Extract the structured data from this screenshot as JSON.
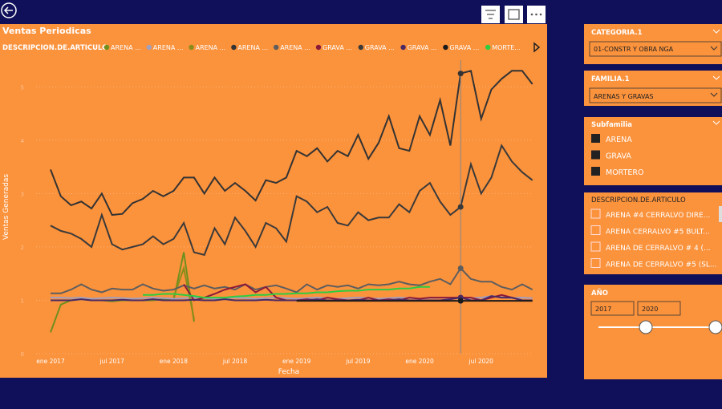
{
  "chart_data": {
    "type": "line",
    "title": "Ventas Periodicas",
    "legend_title": "DESCRIPCION.DE.ARTICULO",
    "x_label": "Fecha",
    "y_label": "Ventas Generadas",
    "categories": [
      "ene 2017",
      null,
      null,
      null,
      null,
      null,
      "jul 2017",
      null,
      null,
      null,
      null,
      null,
      "ene 2018",
      null,
      null,
      null,
      null,
      null,
      "jul 2018",
      null,
      null,
      null,
      null,
      null,
      "ene 2019",
      null,
      null,
      null,
      null,
      null,
      "jul 2019",
      null,
      null,
      null,
      null,
      null,
      "ene 2020",
      null,
      null,
      null,
      null,
      null,
      "jul 2020",
      null,
      null,
      null,
      null,
      null
    ],
    "ylim": [
      0,
      5.5
    ],
    "yticks": [
      0,
      1,
      2,
      3,
      4,
      5
    ],
    "grid": true,
    "series": [
      {
        "name": "ARENA ...",
        "color": "#6f8f1f",
        "values": [
          0.4,
          0.92,
          1.0,
          1.02,
          1.0,
          1.0,
          0.98,
          1.0,
          1.0,
          1.0,
          1.0,
          1.02,
          1.0,
          1.9,
          0.6,
          null,
          null,
          null,
          null,
          null,
          null,
          null,
          null,
          null,
          null,
          null,
          null,
          null,
          null,
          null,
          null,
          null,
          null,
          null,
          null,
          null,
          null,
          null,
          null,
          null,
          null,
          null,
          null,
          null,
          null,
          null,
          null,
          null
        ]
      },
      {
        "name": "ARENA ...",
        "color": "#a29fbf",
        "values": [
          1.05,
          1.05,
          1.04,
          1.05,
          1.03,
          1.04,
          1.05,
          1.04,
          1.03,
          1.04,
          1.05,
          1.04,
          1.03,
          1.04,
          1.05,
          1.04,
          1.03,
          1.04,
          1.05,
          1.04,
          1.03,
          1.04,
          1.05,
          1.04,
          1.03,
          1.04,
          1.05,
          1.04,
          1.03,
          1.04,
          1.05,
          1.04,
          1.03,
          1.04,
          1.05,
          1.04,
          1.03,
          1.04,
          1.05,
          1.04,
          1.03,
          1.04,
          1.05,
          1.08,
          1.06,
          1.04,
          1.05,
          1.04
        ]
      },
      {
        "name": "ARENA ...",
        "color": "#8c8c1a",
        "values": [
          null,
          null,
          null,
          null,
          null,
          null,
          null,
          null,
          null,
          null,
          null,
          null,
          1.05,
          1.6,
          0.65,
          null,
          null,
          null,
          null,
          null,
          null,
          null,
          null,
          null,
          null,
          null,
          null,
          null,
          null,
          null,
          null,
          null,
          null,
          null,
          null,
          null,
          null,
          null,
          null,
          null,
          null,
          null,
          null,
          null,
          null,
          null,
          null,
          null
        ]
      },
      {
        "name": "ARENA ...",
        "color": "#333333",
        "values": [
          3.45,
          2.95,
          2.78,
          2.85,
          2.72,
          3.0,
          2.6,
          2.62,
          2.82,
          2.9,
          3.05,
          2.95,
          3.05,
          3.3,
          3.3,
          3.0,
          3.3,
          3.05,
          3.2,
          3.05,
          2.87,
          3.25,
          3.2,
          3.3,
          3.8,
          3.7,
          3.85,
          3.6,
          3.8,
          3.7,
          4.1,
          3.65,
          3.95,
          4.45,
          3.85,
          3.8,
          4.45,
          4.1,
          4.75,
          3.9,
          5.25,
          5.3,
          4.4,
          4.95,
          5.15,
          5.3,
          5.3,
          5.05
        ]
      },
      {
        "name": "ARENA ...",
        "color": "#5e5e5e",
        "values": [
          1.13,
          1.13,
          1.2,
          1.3,
          1.2,
          1.15,
          1.22,
          1.2,
          1.2,
          1.3,
          1.22,
          1.18,
          1.2,
          1.28,
          1.22,
          1.28,
          1.22,
          1.25,
          1.2,
          1.3,
          1.2,
          1.25,
          1.28,
          1.22,
          1.15,
          1.3,
          1.2,
          1.28,
          1.25,
          1.28,
          1.22,
          1.3,
          1.28,
          1.3,
          1.35,
          1.3,
          1.28,
          1.35,
          1.4,
          1.3,
          1.6,
          1.4,
          1.35,
          1.35,
          1.25,
          1.2,
          1.3,
          1.2
        ]
      },
      {
        "name": "GRAVA ...",
        "color": "#8b1a3a",
        "values": [
          null,
          null,
          null,
          null,
          null,
          null,
          null,
          null,
          null,
          null,
          null,
          null,
          null,
          1.3,
          1.0,
          1.05,
          1.12,
          1.2,
          1.25,
          1.3,
          1.15,
          1.25,
          1.05,
          1.0,
          1.0,
          1.02,
          1.0,
          1.05,
          1.02,
          1.0,
          1.0,
          1.05,
          1.0,
          1.02,
          1.0,
          1.05,
          1.03,
          1.05,
          1.05,
          1.05,
          1.05,
          1.05,
          1.0,
          1.05,
          1.1,
          1.05,
          1.0,
          null
        ]
      },
      {
        "name": "GRAVA ...",
        "color": "#3a3a3a",
        "values": [
          2.4,
          2.3,
          2.25,
          2.15,
          2.0,
          2.6,
          2.05,
          1.95,
          2.0,
          2.05,
          2.2,
          2.05,
          2.15,
          2.45,
          1.9,
          1.85,
          2.35,
          2.05,
          2.55,
          2.3,
          2.0,
          2.45,
          2.35,
          2.1,
          2.95,
          2.85,
          2.65,
          2.75,
          2.45,
          2.4,
          2.65,
          2.5,
          2.55,
          2.55,
          2.8,
          2.65,
          3.05,
          3.2,
          2.85,
          2.6,
          2.75,
          3.55,
          3.0,
          3.3,
          3.9,
          3.6,
          3.4,
          3.25
        ]
      },
      {
        "name": "GRAVA ...",
        "color": "#4b2a63",
        "values": [
          1.0,
          1.0,
          1.0,
          1.02,
          1.0,
          1.0,
          1.0,
          1.01,
          1.0,
          1.0,
          1.02,
          1.0,
          1.0,
          1.0,
          1.01,
          1.0,
          1.0,
          1.02,
          1.0,
          1.0,
          1.0,
          1.01,
          1.0,
          1.0,
          1.0,
          1.0,
          1.02,
          1.0,
          1.0,
          1.0,
          1.01,
          1.0,
          1.0,
          1.0,
          1.02,
          1.0,
          1.0,
          1.0,
          1.0,
          1.02,
          1.05,
          1.0,
          1.0,
          1.08,
          1.05,
          1.05,
          1.0,
          1.0
        ]
      },
      {
        "name": "GRAVA ...",
        "color": "#1a1a1a",
        "values": [
          null,
          null,
          null,
          null,
          null,
          null,
          null,
          null,
          null,
          null,
          null,
          null,
          null,
          null,
          null,
          null,
          null,
          null,
          null,
          null,
          null,
          null,
          null,
          null,
          0.99,
          0.99,
          0.99,
          0.99,
          0.99,
          0.99,
          0.99,
          0.99,
          0.99,
          0.99,
          0.99,
          0.99,
          0.99,
          0.99,
          0.99,
          0.99,
          0.99,
          0.99,
          0.99,
          0.99,
          0.99,
          0.99,
          0.99,
          0.99
        ]
      },
      {
        "name": "MORTE...",
        "color": "#2ecc40",
        "values": [
          null,
          null,
          null,
          null,
          null,
          null,
          null,
          null,
          null,
          1.1,
          1.1,
          1.12,
          1.12,
          1.1,
          1.08,
          1.05,
          1.05,
          1.05,
          1.07,
          1.08,
          1.1,
          1.1,
          1.12,
          1.12,
          1.13,
          1.13,
          1.15,
          1.15,
          1.17,
          1.18,
          1.18,
          1.2,
          1.2,
          1.2,
          1.22,
          1.22,
          1.25,
          1.25,
          null,
          null,
          null,
          null,
          null,
          null,
          null,
          null,
          null,
          null
        ]
      }
    ]
  },
  "filters": {
    "categoria": {
      "title": "CATEGORIA.1",
      "selected": "01-CONSTR Y OBRA NGA"
    },
    "familia": {
      "title": "FAMILIA.1",
      "selected": "ARENAS Y GRAVAS"
    },
    "subfamilia": {
      "title": "Subfamilia",
      "items": [
        "ARENA",
        "GRAVA",
        "MORTERO"
      ]
    },
    "descripcion": {
      "title": "DESCRIPCION.DE.ARTICULO",
      "items": [
        "ARENA #4 CERRALVO DIRE...",
        "ARENA CERRALVO #5 BULT...",
        "ARENA DE CERRALVO # 4 (...",
        "ARENA DE CERRALVO #5 (SL..."
      ]
    },
    "anio": {
      "title": "AÑO",
      "from": "2017",
      "to": "2020"
    }
  }
}
